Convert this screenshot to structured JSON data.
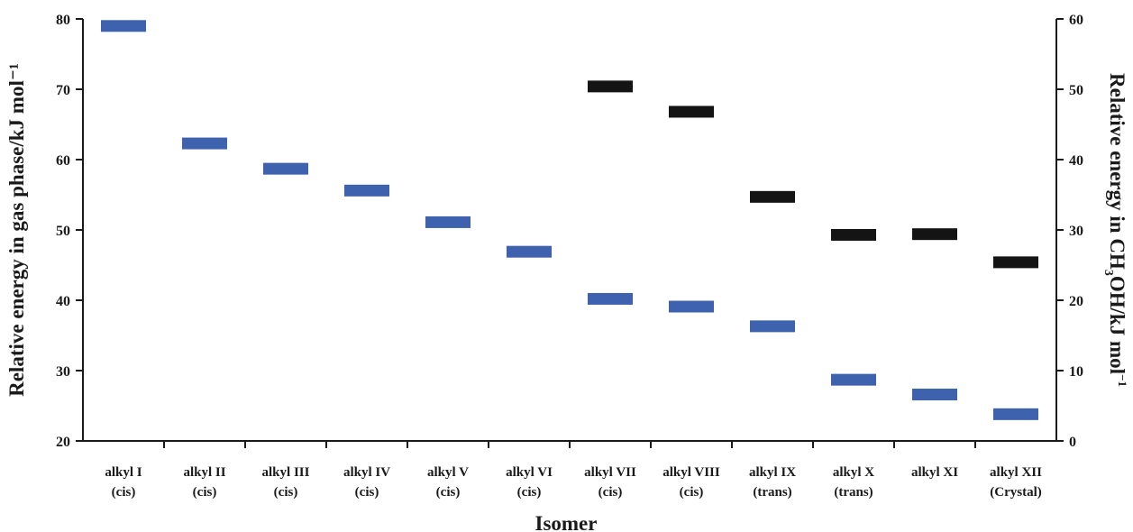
{
  "chart_data": {
    "type": "scatter",
    "marker": "horizontal-bar",
    "xlabel": "Isomer",
    "ylabel_left": "Relative energy in gas phase/kJ mol⁻¹",
    "ylabel_right_parts": [
      "Relative energy in CH",
      "3",
      "OH/kJ mol",
      "−1"
    ],
    "ylim_left": [
      20,
      80
    ],
    "ylim_right": [
      0,
      60
    ],
    "yticks_left": [
      20,
      30,
      40,
      50,
      60,
      70,
      80
    ],
    "yticks_right": [
      0,
      10,
      20,
      30,
      40,
      50,
      60
    ],
    "grid": false,
    "legend": "none",
    "categories": [
      [
        "alkyl I",
        "(cis)"
      ],
      [
        "alkyl II",
        "(cis)"
      ],
      [
        "alkyl III",
        "(cis)"
      ],
      [
        "alkyl IV",
        "(cis)"
      ],
      [
        "alkyl V",
        "(cis)"
      ],
      [
        "alkyl VI",
        "(cis)"
      ],
      [
        "alkyl VII",
        "(cis)"
      ],
      [
        "alkyl VIII",
        "(cis)"
      ],
      [
        "alkyl IX",
        "(trans)"
      ],
      [
        "alkyl X",
        "(trans)"
      ],
      [
        "alkyl XI",
        ""
      ],
      [
        "alkyl XII",
        "(Crystal)"
      ]
    ],
    "series": [
      {
        "axis": "left",
        "color": "#3e62ad",
        "values": [
          79.0,
          62.3,
          58.7,
          55.6,
          51.1,
          46.9,
          40.2,
          39.1,
          36.3,
          28.7,
          26.6,
          23.8
        ]
      },
      {
        "axis": "right",
        "color": "#141414",
        "values": [
          null,
          null,
          null,
          null,
          null,
          null,
          50.4,
          46.8,
          34.7,
          29.3,
          29.4,
          25.4
        ]
      }
    ]
  }
}
